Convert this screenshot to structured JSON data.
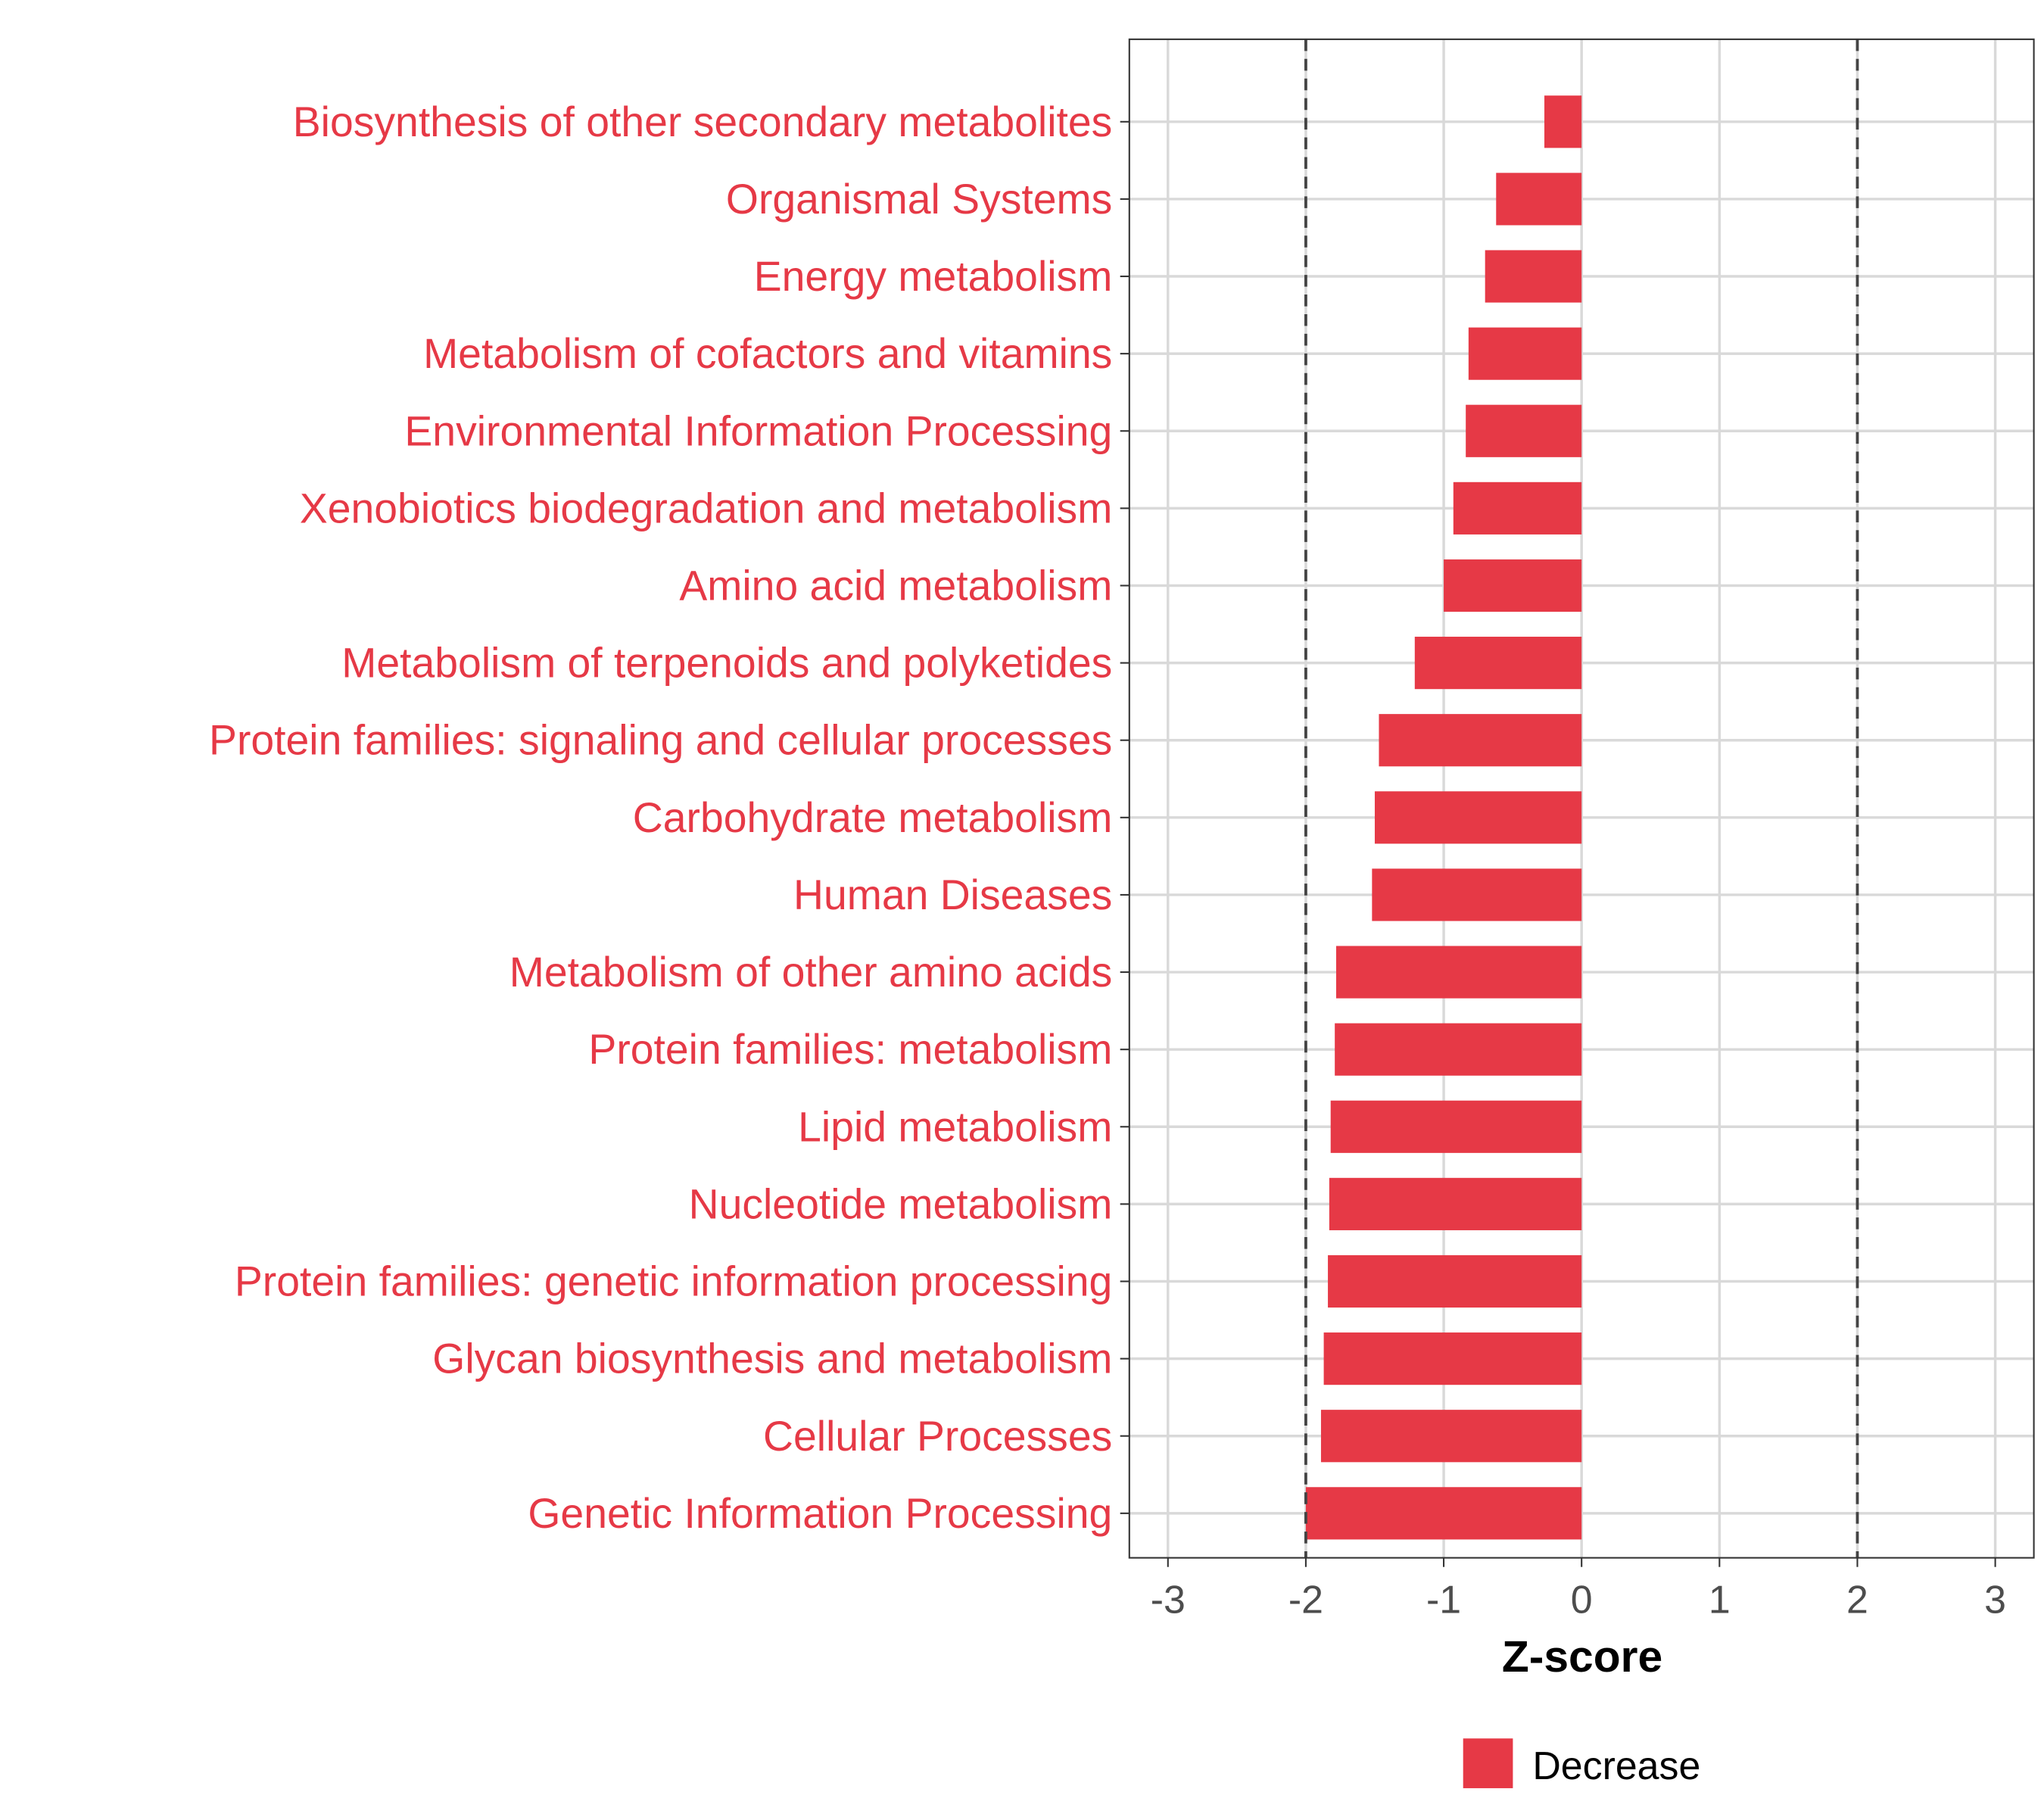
{
  "chart_data": {
    "type": "bar",
    "orientation": "horizontal",
    "title": "",
    "xlabel": "Z-score",
    "ylabel": "",
    "xlim": [
      -3.28,
      3.28
    ],
    "xticks": [
      -3,
      -2,
      -1,
      0,
      1,
      2,
      3
    ],
    "xtick_labels": [
      "-3",
      "-2",
      "-1",
      "0",
      "1",
      "2",
      "3"
    ],
    "reference_lines": [
      -2,
      2
    ],
    "grid": true,
    "legend": {
      "position": "bottom",
      "entries": [
        {
          "label": "Decrease",
          "color": "#E63946"
        }
      ]
    },
    "bar_color": "#E63946",
    "label_color": "#E63946",
    "categories": [
      "Biosynthesis of other secondary metabolites",
      "Organismal Systems",
      "Energy metabolism",
      "Metabolism of cofactors and vitamins",
      "Environmental Information Processing",
      "Xenobiotics biodegradation and metabolism",
      "Amino acid metabolism",
      "Metabolism of terpenoids and polyketides",
      "Protein families: signaling and cellular processes",
      "Carbohydrate metabolism",
      "Human Diseases",
      "Metabolism of other amino acids",
      "Protein families: metabolism",
      "Lipid metabolism",
      "Nucleotide metabolism",
      "Protein families: genetic information processing",
      "Glycan biosynthesis and metabolism",
      "Cellular Processes",
      "Genetic Information Processing"
    ],
    "values": [
      -0.27,
      -0.62,
      -0.7,
      -0.82,
      -0.84,
      -0.93,
      -1.0,
      -1.21,
      -1.47,
      -1.5,
      -1.52,
      -1.78,
      -1.79,
      -1.82,
      -1.83,
      -1.84,
      -1.87,
      -1.89,
      -2.0
    ]
  }
}
